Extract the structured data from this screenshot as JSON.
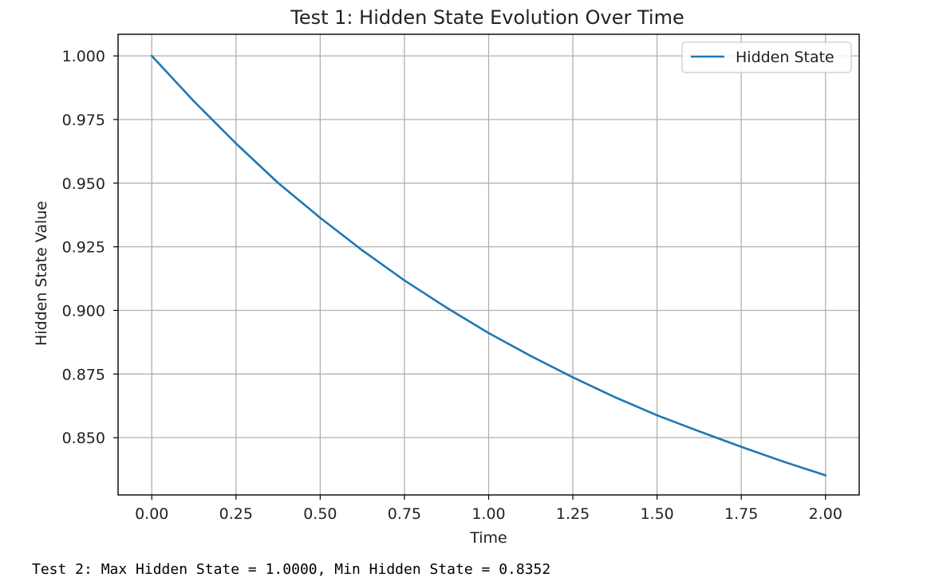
{
  "chart_data": {
    "type": "line",
    "title": "Test 1: Hidden State Evolution Over Time",
    "xlabel": "Time",
    "ylabel": "Hidden State Value",
    "xlim": [
      -0.1,
      2.1
    ],
    "ylim": [
      0.8275,
      1.0085
    ],
    "xticks": [
      0.0,
      0.25,
      0.5,
      0.75,
      1.0,
      1.25,
      1.5,
      1.75,
      2.0
    ],
    "xtick_labels": [
      "0.00",
      "0.25",
      "0.50",
      "0.75",
      "1.00",
      "1.25",
      "1.50",
      "1.75",
      "2.00"
    ],
    "yticks": [
      0.85,
      0.875,
      0.9,
      0.925,
      0.95,
      0.975,
      1.0
    ],
    "ytick_labels": [
      "0.850",
      "0.875",
      "0.900",
      "0.925",
      "0.950",
      "0.975",
      "1.000"
    ],
    "grid": true,
    "legend_position": "top-right",
    "series": [
      {
        "name": "Hidden State",
        "color": "#1f77b4",
        "x": [
          0.0,
          0.125,
          0.25,
          0.375,
          0.5,
          0.625,
          0.75,
          0.875,
          1.0,
          1.125,
          1.25,
          1.375,
          1.5,
          1.625,
          1.75,
          1.875,
          2.0
        ],
        "y": [
          1.0,
          0.9822,
          0.9656,
          0.9501,
          0.9364,
          0.9236,
          0.9118,
          0.9011,
          0.8911,
          0.8821,
          0.8737,
          0.8659,
          0.8588,
          0.8525,
          0.8464,
          0.8406,
          0.8352
        ]
      }
    ]
  },
  "output": {
    "text": "Test 2: Max Hidden State = 1.0000, Min Hidden State = 0.8352"
  }
}
